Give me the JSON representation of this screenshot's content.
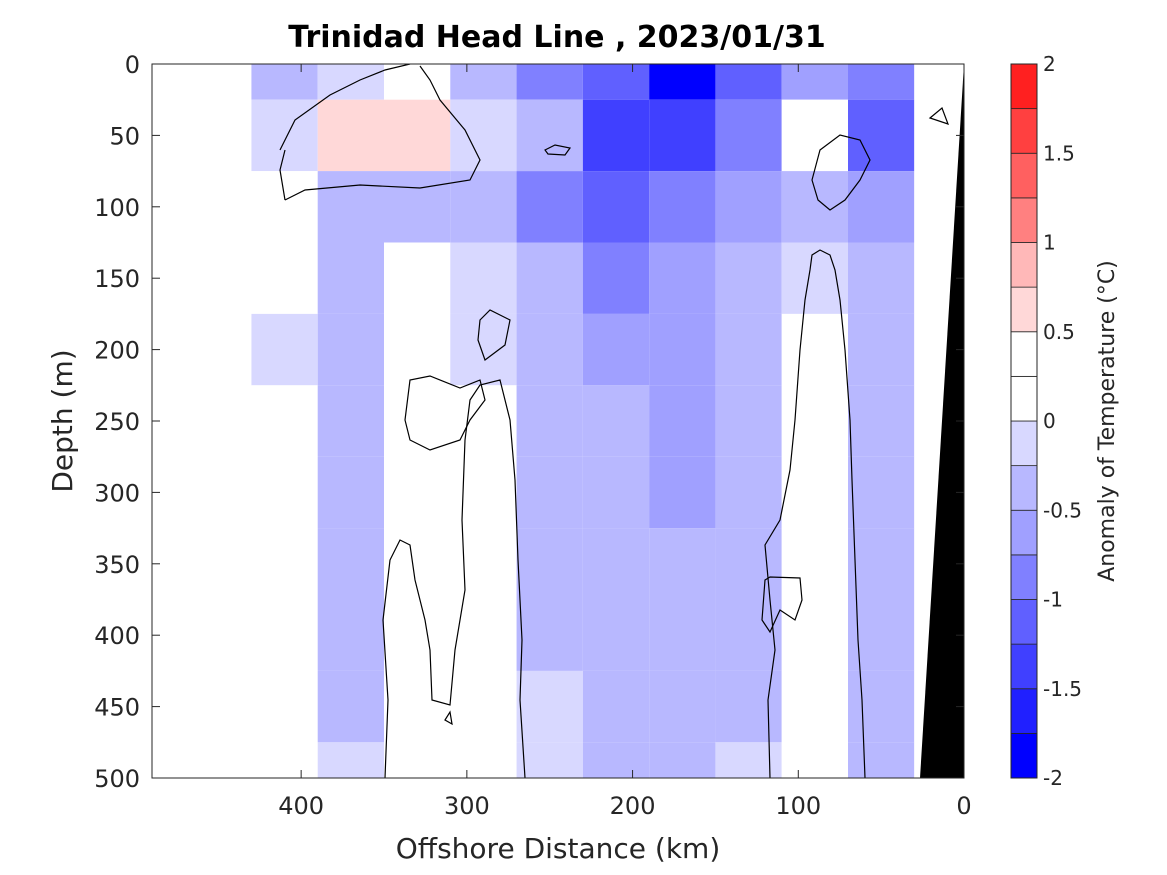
{
  "chart_data": {
    "type": "heatmap",
    "title": "Trinidad Head Line , 2023/01/31",
    "xlabel": "Offshore Distance (km)",
    "ylabel": "Depth (m)",
    "xlim": [
      490,
      0
    ],
    "ylim": [
      0,
      500
    ],
    "x_ticks": [
      400,
      300,
      200,
      100,
      0
    ],
    "y_ticks": [
      0,
      50,
      100,
      150,
      200,
      250,
      300,
      350,
      400,
      450,
      500
    ],
    "colorbar": {
      "label": "Anomaly of Temperature (°C)",
      "range": [
        -2,
        2
      ],
      "ticks": [
        2,
        1.5,
        1,
        0.5,
        0,
        -0.5,
        -1,
        -1.5,
        -2
      ],
      "levels": [
        -2,
        -1.75,
        -1.5,
        -1.25,
        -1,
        -0.75,
        -0.5,
        -0.25,
        0,
        0.25,
        0.5,
        0.75,
        1,
        1.25,
        1.5,
        1.75,
        2
      ],
      "colors": [
        "#0000ff",
        "#2020ff",
        "#4040ff",
        "#6060ff",
        "#8080ff",
        "#a0a0ff",
        "#b8b8ff",
        "#d8d8ff",
        "#ffffff",
        "#ffffff",
        "#ffd8d8",
        "#ffb8b8",
        "#ff8080",
        "#ff6060",
        "#ff4040",
        "#ff2020",
        "#ff0000"
      ]
    },
    "grid_x_km": [
      410,
      370,
      330,
      290,
      250,
      210,
      170,
      130,
      90,
      50,
      10
    ],
    "grid_depth_m": [
      0,
      50,
      100,
      150,
      200,
      250,
      300,
      350,
      400,
      450,
      500
    ],
    "anomaly": [
      [
        -0.3,
        -0.1,
        0.0,
        -0.3,
        -0.8,
        -1.2,
        -1.9,
        -1.1,
        -0.6,
        -1.0,
        0.0
      ],
      [
        -0.2,
        0.7,
        0.7,
        -0.2,
        -0.5,
        -1.3,
        -1.5,
        -1.0,
        0.1,
        -1.2,
        0.0
      ],
      [
        0.0,
        -0.4,
        -0.3,
        -0.3,
        -0.9,
        -1.1,
        -1.0,
        -0.7,
        -0.3,
        -0.6,
        0.0
      ],
      [
        0.0,
        -0.3,
        0.0,
        -0.2,
        -0.4,
        -0.8,
        -0.6,
        -0.3,
        -0.1,
        -0.4,
        0.0
      ],
      [
        -0.1,
        -0.3,
        0.0,
        -0.1,
        -0.3,
        -0.6,
        -0.7,
        -0.3,
        0.1,
        -0.5,
        0.0
      ],
      [
        0.0,
        -0.3,
        0.0,
        0.0,
        -0.3,
        -0.5,
        -0.7,
        -0.3,
        0.0,
        -0.3,
        0.0
      ],
      [
        0.0,
        -0.3,
        0.0,
        0.0,
        -0.3,
        -0.4,
        -0.6,
        -0.3,
        0.0,
        -0.3,
        0.0
      ],
      [
        0.0,
        -0.3,
        0.0,
        0.0,
        -0.3,
        -0.4,
        -0.5,
        -0.3,
        0.0,
        -0.3,
        0.0
      ],
      [
        0.0,
        -0.3,
        0.0,
        0.0,
        -0.3,
        -0.3,
        -0.4,
        -0.3,
        0.0,
        -0.3,
        0.0
      ],
      [
        0.0,
        -0.3,
        0.0,
        0.0,
        -0.2,
        -0.3,
        -0.3,
        -0.3,
        0.0,
        -0.3,
        0.0
      ],
      [
        0.0,
        -0.2,
        0.0,
        0.0,
        -0.2,
        -0.3,
        -0.3,
        -0.2,
        0.0,
        -0.3,
        0.0
      ]
    ],
    "bottom_mask": "black seafloor wedge near 0 km"
  }
}
